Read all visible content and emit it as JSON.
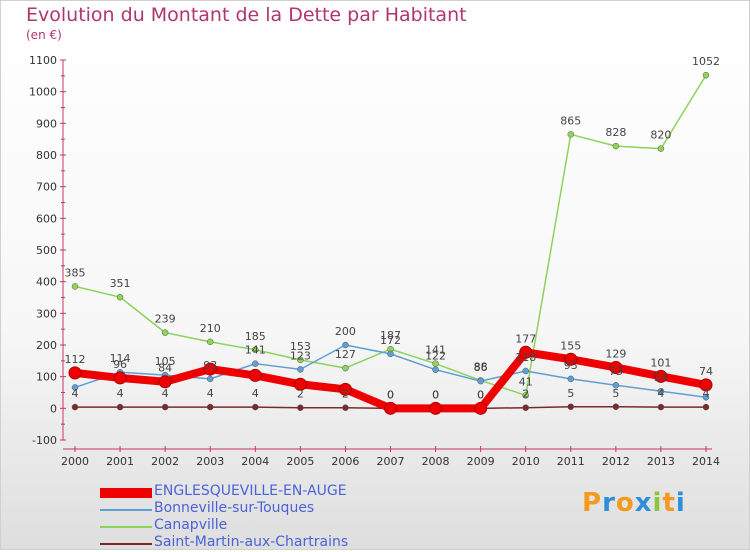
{
  "title": "Evolution du Montant de la Dette par Habitant",
  "subtitle": "(en €)",
  "logo": "Proxiti",
  "chart_data": {
    "type": "line",
    "x": [
      2000,
      2001,
      2002,
      2003,
      2004,
      2005,
      2006,
      2007,
      2008,
      2009,
      2010,
      2011,
      2012,
      2013,
      2014
    ],
    "ylim": [
      -100,
      1100
    ],
    "yticks": [
      -100,
      0,
      100,
      200,
      300,
      400,
      500,
      600,
      700,
      800,
      900,
      1000,
      1100
    ],
    "grid": false,
    "legend_position": "bottom-left",
    "series": [
      {
        "name": "ENGLESQUEVILLE-EN-AUGE",
        "color": "#ee0000",
        "values": [
          112,
          96,
          84,
          124,
          104,
          76,
          60,
          0,
          0,
          0,
          177,
          155,
          129,
          101,
          74
        ],
        "labels": [
          "112",
          "96",
          "84",
          "",
          "",
          "",
          "",
          "0",
          "0",
          "0",
          "177",
          "155",
          "129",
          "101",
          "74"
        ]
      },
      {
        "name": "Bonneville-sur-Touques",
        "color": "#5e9fd4",
        "values": [
          66,
          114,
          105,
          93,
          141,
          123,
          200,
          172,
          122,
          86,
          118,
          93,
          73,
          54,
          35
        ],
        "labels": [
          "",
          "114",
          "105",
          "93",
          "141",
          "123",
          "200",
          "172",
          "122",
          "86",
          "118",
          "93",
          "73",
          "54",
          ""
        ]
      },
      {
        "name": "Canapville",
        "color": "#8ed35a",
        "values": [
          385,
          351,
          239,
          210,
          185,
          153,
          127,
          187,
          141,
          88,
          41,
          865,
          828,
          820,
          1052
        ],
        "labels": [
          "385",
          "351",
          "239",
          "210",
          "185",
          "153",
          "127",
          "187",
          "141",
          "88",
          "41",
          "865",
          "828",
          "820",
          "1052"
        ]
      },
      {
        "name": "Saint-Martin-aux-Chartrains",
        "color": "#7a2a2a",
        "values": [
          4,
          4,
          4,
          4,
          4,
          2,
          2,
          0,
          0,
          0,
          2,
          5,
          5,
          4,
          4
        ],
        "labels": [
          "4",
          "4",
          "4",
          "4",
          "4",
          "2",
          "2",
          "0",
          "0",
          "0",
          "2",
          "5",
          "5",
          "4",
          "4"
        ]
      }
    ]
  }
}
